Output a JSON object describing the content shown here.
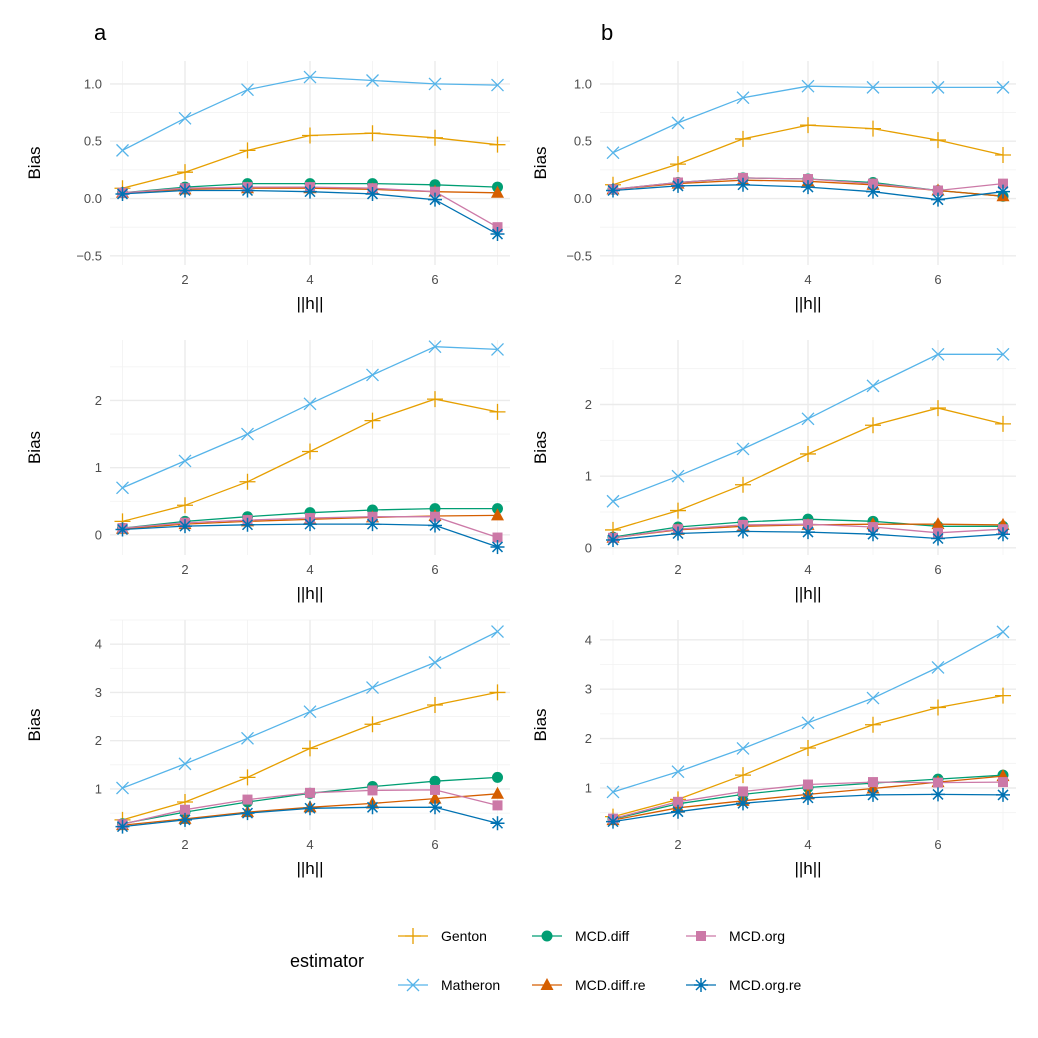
{
  "figure": {
    "panel_labels": [
      "a",
      "b"
    ],
    "legend_title": "estimator"
  },
  "series_styles": [
    {
      "name": "Genton",
      "color": "#E69F00",
      "shape": "plus"
    },
    {
      "name": "Matheron",
      "color": "#56B4E9",
      "shape": "cross"
    },
    {
      "name": "MCD.diff",
      "color": "#009E73",
      "shape": "circle"
    },
    {
      "name": "MCD.diff.re",
      "color": "#D55E00",
      "shape": "triangle"
    },
    {
      "name": "MCD.org",
      "color": "#CC79A7",
      "shape": "square"
    },
    {
      "name": "MCD.org.re",
      "color": "#0072B2",
      "shape": "asterisk"
    }
  ],
  "chart_data": [
    {
      "type": "line",
      "panel": "a",
      "row": 1,
      "xlabel": "||h||",
      "ylabel": "Bias",
      "xlim": [
        0.8,
        7.2
      ],
      "ylim": [
        -0.58,
        1.2
      ],
      "xticks": [
        2,
        4,
        6
      ],
      "yticks": [
        -0.5,
        0.0,
        0.5,
        1.0
      ],
      "ytick_labels": [
        "−0.5",
        "0.0",
        "0.5",
        "1.0"
      ],
      "x": [
        1,
        2,
        3,
        4,
        5,
        6,
        7
      ],
      "series": [
        {
          "name": "Matheron",
          "values": [
            0.42,
            0.7,
            0.95,
            1.06,
            1.03,
            1.0,
            0.99
          ]
        },
        {
          "name": "Genton",
          "values": [
            0.09,
            0.23,
            0.42,
            0.55,
            0.57,
            0.53,
            0.47
          ]
        },
        {
          "name": "MCD.diff",
          "values": [
            0.05,
            0.1,
            0.13,
            0.13,
            0.13,
            0.12,
            0.1
          ]
        },
        {
          "name": "MCD.diff.re",
          "values": [
            0.05,
            0.08,
            0.09,
            0.09,
            0.08,
            0.06,
            0.05
          ]
        },
        {
          "name": "MCD.org",
          "values": [
            0.05,
            0.09,
            0.1,
            0.1,
            0.09,
            0.06,
            -0.25
          ]
        },
        {
          "name": "MCD.org.re",
          "values": [
            0.04,
            0.07,
            0.07,
            0.06,
            0.04,
            -0.01,
            -0.31
          ]
        }
      ]
    },
    {
      "type": "line",
      "panel": "b",
      "row": 1,
      "xlabel": "||h||",
      "ylabel": "Bias",
      "xlim": [
        0.8,
        7.2
      ],
      "ylim": [
        -0.58,
        1.2
      ],
      "xticks": [
        2,
        4,
        6
      ],
      "yticks": [
        -0.5,
        0.0,
        0.5,
        1.0
      ],
      "ytick_labels": [
        "−0.5",
        "0.0",
        "0.5",
        "1.0"
      ],
      "x": [
        1,
        2,
        3,
        4,
        5,
        6,
        7
      ],
      "series": [
        {
          "name": "Matheron",
          "values": [
            0.4,
            0.66,
            0.88,
            0.98,
            0.97,
            0.97,
            0.97
          ]
        },
        {
          "name": "Genton",
          "values": [
            0.12,
            0.3,
            0.52,
            0.64,
            0.61,
            0.51,
            0.38
          ]
        },
        {
          "name": "MCD.diff",
          "values": [
            0.08,
            0.14,
            0.18,
            0.17,
            0.14,
            0.07,
            0.02
          ]
        },
        {
          "name": "MCD.diff.re",
          "values": [
            0.08,
            0.13,
            0.16,
            0.15,
            0.12,
            0.07,
            0.02
          ]
        },
        {
          "name": "MCD.org",
          "values": [
            0.08,
            0.14,
            0.18,
            0.17,
            0.13,
            0.07,
            0.13
          ]
        },
        {
          "name": "MCD.org.re",
          "values": [
            0.07,
            0.11,
            0.12,
            0.1,
            0.06,
            -0.01,
            0.06
          ]
        }
      ]
    },
    {
      "type": "line",
      "panel": "a",
      "row": 2,
      "xlabel": "||h||",
      "ylabel": "Bias",
      "xlim": [
        0.8,
        7.2
      ],
      "ylim": [
        -0.3,
        2.9
      ],
      "xticks": [
        2,
        4,
        6
      ],
      "yticks": [
        0,
        1,
        2
      ],
      "ytick_labels": [
        "0",
        "1",
        "2"
      ],
      "x": [
        1,
        2,
        3,
        4,
        5,
        6,
        7
      ],
      "series": [
        {
          "name": "Matheron",
          "values": [
            0.7,
            1.1,
            1.5,
            1.95,
            2.38,
            2.8,
            2.76
          ]
        },
        {
          "name": "Genton",
          "values": [
            0.2,
            0.44,
            0.79,
            1.24,
            1.7,
            2.02,
            1.83
          ]
        },
        {
          "name": "MCD.diff",
          "values": [
            0.1,
            0.2,
            0.27,
            0.33,
            0.37,
            0.39,
            0.39
          ]
        },
        {
          "name": "MCD.diff.re",
          "values": [
            0.09,
            0.16,
            0.2,
            0.23,
            0.26,
            0.28,
            0.29
          ]
        },
        {
          "name": "MCD.org",
          "values": [
            0.1,
            0.18,
            0.22,
            0.25,
            0.27,
            0.27,
            -0.04
          ]
        },
        {
          "name": "MCD.org.re",
          "values": [
            0.08,
            0.13,
            0.15,
            0.16,
            0.16,
            0.14,
            -0.18
          ]
        }
      ]
    },
    {
      "type": "line",
      "panel": "b",
      "row": 2,
      "xlabel": "||h||",
      "ylabel": "Bias",
      "xlim": [
        0.8,
        7.2
      ],
      "ylim": [
        -0.1,
        2.9
      ],
      "xticks": [
        2,
        4,
        6
      ],
      "yticks": [
        0,
        1,
        2
      ],
      "ytick_labels": [
        "0",
        "1",
        "2"
      ],
      "x": [
        1,
        2,
        3,
        4,
        5,
        6,
        7
      ],
      "series": [
        {
          "name": "Matheron",
          "values": [
            0.65,
            1.0,
            1.38,
            1.8,
            2.26,
            2.7,
            2.7
          ]
        },
        {
          "name": "Genton",
          "values": [
            0.25,
            0.52,
            0.88,
            1.31,
            1.71,
            1.95,
            1.73
          ]
        },
        {
          "name": "MCD.diff",
          "values": [
            0.15,
            0.29,
            0.36,
            0.4,
            0.37,
            0.3,
            0.3
          ]
        },
        {
          "name": "MCD.diff.re",
          "values": [
            0.14,
            0.25,
            0.3,
            0.32,
            0.33,
            0.33,
            0.32
          ]
        },
        {
          "name": "MCD.org",
          "values": [
            0.14,
            0.26,
            0.32,
            0.33,
            0.29,
            0.21,
            0.26
          ]
        },
        {
          "name": "MCD.org.re",
          "values": [
            0.11,
            0.2,
            0.23,
            0.22,
            0.19,
            0.13,
            0.19
          ]
        }
      ]
    },
    {
      "type": "line",
      "panel": "a",
      "row": 3,
      "xlabel": "||h||",
      "ylabel": "Bias",
      "xlim": [
        0.8,
        7.2
      ],
      "ylim": [
        0.15,
        4.5
      ],
      "xticks": [
        2,
        4,
        6
      ],
      "yticks": [
        1,
        2,
        3,
        4
      ],
      "ytick_labels": [
        "1",
        "2",
        "3",
        "4"
      ],
      "x": [
        1,
        2,
        3,
        4,
        5,
        6,
        7
      ],
      "series": [
        {
          "name": "Matheron",
          "values": [
            1.02,
            1.52,
            2.05,
            2.6,
            3.1,
            3.62,
            4.26
          ]
        },
        {
          "name": "Genton",
          "values": [
            0.36,
            0.73,
            1.24,
            1.84,
            2.34,
            2.74,
            3.0
          ]
        },
        {
          "name": "MCD.diff",
          "values": [
            0.28,
            0.52,
            0.73,
            0.91,
            1.05,
            1.16,
            1.24
          ]
        },
        {
          "name": "MCD.diff.re",
          "values": [
            0.25,
            0.38,
            0.52,
            0.62,
            0.7,
            0.8,
            0.9
          ]
        },
        {
          "name": "MCD.org",
          "values": [
            0.27,
            0.57,
            0.78,
            0.92,
            0.97,
            0.98,
            0.66
          ]
        },
        {
          "name": "MCD.org.re",
          "values": [
            0.22,
            0.36,
            0.5,
            0.6,
            0.62,
            0.62,
            0.29
          ]
        }
      ]
    },
    {
      "type": "line",
      "panel": "b",
      "row": 3,
      "xlabel": "||h||",
      "ylabel": "Bias",
      "xlim": [
        0.8,
        7.2
      ],
      "ylim": [
        0.15,
        4.4
      ],
      "xticks": [
        2,
        4,
        6
      ],
      "yticks": [
        1,
        2,
        3,
        4
      ],
      "ytick_labels": [
        "1",
        "2",
        "3",
        "4"
      ],
      "x": [
        1,
        2,
        3,
        4,
        5,
        6,
        7
      ],
      "series": [
        {
          "name": "Matheron",
          "values": [
            0.92,
            1.33,
            1.8,
            2.32,
            2.82,
            3.44,
            4.16
          ]
        },
        {
          "name": "Genton",
          "values": [
            0.42,
            0.77,
            1.26,
            1.81,
            2.28,
            2.63,
            2.87
          ]
        },
        {
          "name": "MCD.diff",
          "values": [
            0.37,
            0.68,
            0.87,
            1.01,
            1.1,
            1.18,
            1.26
          ]
        },
        {
          "name": "MCD.diff.re",
          "values": [
            0.35,
            0.6,
            0.74,
            0.87,
            0.99,
            1.12,
            1.24
          ]
        },
        {
          "name": "MCD.org",
          "values": [
            0.38,
            0.72,
            0.93,
            1.07,
            1.12,
            1.11,
            1.12
          ]
        },
        {
          "name": "MCD.org.re",
          "values": [
            0.32,
            0.52,
            0.69,
            0.8,
            0.86,
            0.87,
            0.86
          ]
        }
      ]
    }
  ],
  "legend": {
    "rows": [
      [
        "Genton",
        "MCD.diff",
        "MCD.org"
      ],
      [
        "Matheron",
        "MCD.diff.re",
        "MCD.org.re"
      ]
    ]
  }
}
